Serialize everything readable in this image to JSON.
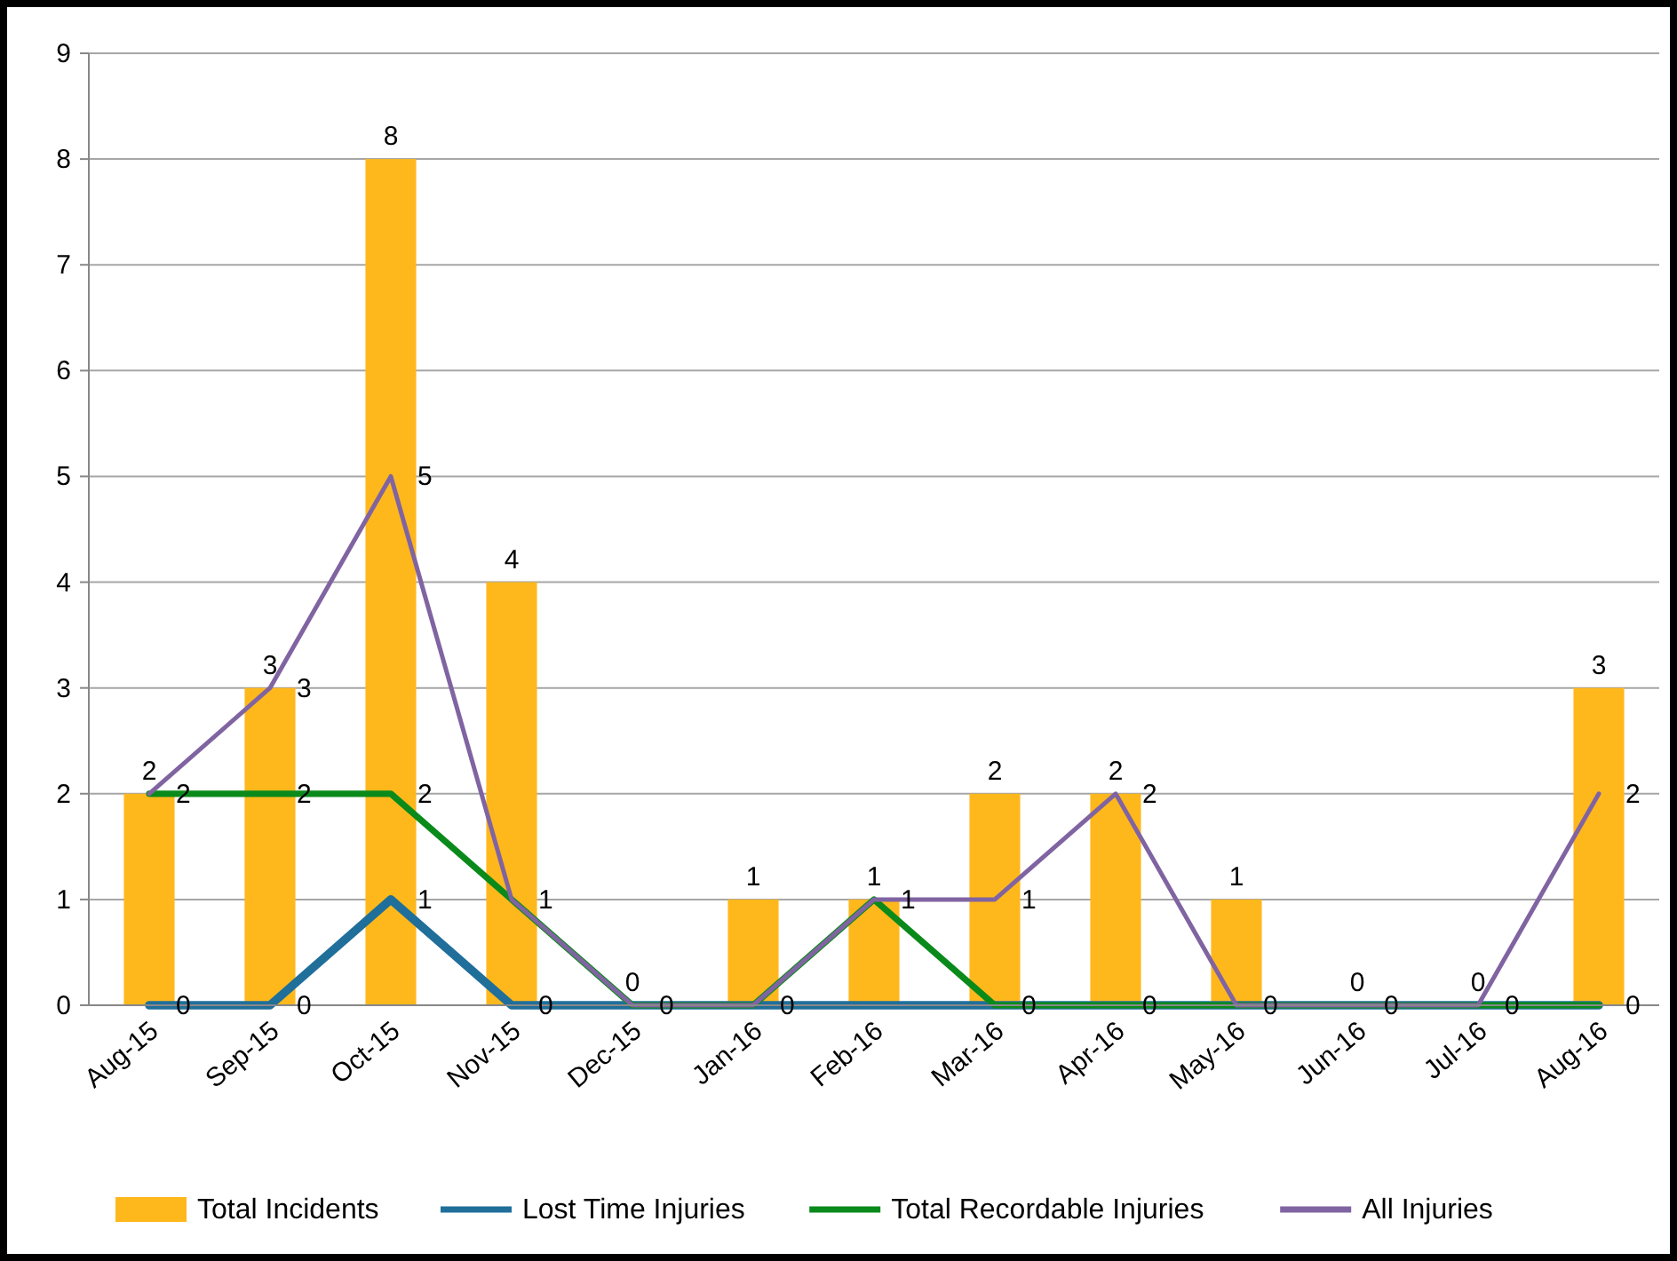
{
  "chart_data": {
    "type": "bar",
    "categories": [
      "Aug-15",
      "Sep-15",
      "Oct-15",
      "Nov-15",
      "Dec-15",
      "Jan-16",
      "Feb-16",
      "Mar-16",
      "Apr-16",
      "May-16",
      "Jun-16",
      "Jul-16",
      "Aug-16"
    ],
    "series": [
      {
        "name": "Total Incidents",
        "color": "#ffb81c",
        "values": [
          2,
          3,
          8,
          4,
          0,
          1,
          1,
          2,
          2,
          1,
          0,
          0,
          3
        ],
        "value_labels": [
          "2",
          "3",
          "8",
          "4",
          "0",
          "1",
          "1",
          "2",
          "2",
          "1",
          "0",
          "0",
          "3"
        ]
      },
      {
        "name": "Lost Time Injuries",
        "type": "line",
        "color": "#1f6f9a",
        "values": [
          0,
          0,
          1,
          0,
          0,
          0,
          0,
          0,
          0,
          0,
          0,
          0,
          0
        ],
        "value_labels": [
          "0",
          "0",
          "1",
          "0",
          null,
          null,
          null,
          null,
          null,
          null,
          null,
          null,
          null
        ]
      },
      {
        "name": "Total Recordable Injuries",
        "type": "line",
        "color": "#0a8a1a",
        "values": [
          2,
          2,
          2,
          1,
          0,
          0,
          1,
          0,
          0,
          0,
          0,
          0,
          0
        ],
        "value_labels": [
          null,
          "2",
          "2",
          null,
          null,
          null,
          null,
          "0",
          "0",
          null,
          null,
          null,
          "0"
        ]
      },
      {
        "name": "All Injuries",
        "type": "line",
        "color": "#8064a2",
        "values": [
          2,
          3,
          5,
          1,
          0,
          0,
          1,
          1,
          2,
          0,
          0,
          0,
          2
        ],
        "value_labels": [
          "2",
          "3",
          "5",
          "1",
          "0",
          "0",
          "1",
          "1",
          "2",
          "0",
          "0",
          "0",
          "2"
        ]
      }
    ],
    "ylim": [
      0,
      9
    ],
    "yticks": [
      0,
      1,
      2,
      3,
      4,
      5,
      6,
      7,
      8,
      9
    ],
    "grid": "y",
    "legend": "bottom",
    "marker": "none",
    "line_style": "solid"
  }
}
